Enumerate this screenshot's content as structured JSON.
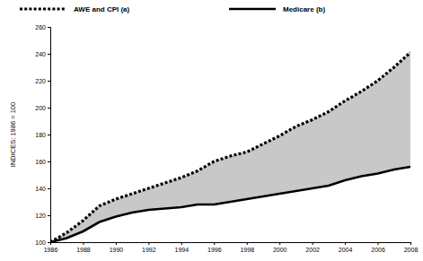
{
  "chart_data": {
    "type": "line",
    "y_label": "INDICES: 1986 = 100",
    "x": [
      1986,
      1987,
      1988,
      1989,
      1990,
      1991,
      1992,
      1993,
      1994,
      1995,
      1996,
      1997,
      1998,
      1999,
      2000,
      2001,
      2002,
      2003,
      2004,
      2005,
      2006,
      2007,
      2008
    ],
    "series": [
      {
        "name": "AWE and CPI (a)",
        "color": "#000000",
        "line_style": "dotted",
        "values": [
          100,
          107,
          116,
          127,
          132,
          136,
          140,
          144,
          148,
          153,
          160,
          164,
          167,
          173,
          179,
          186,
          191,
          197,
          205,
          212,
          220,
          230,
          241
        ]
      },
      {
        "name": "Medicare (b)",
        "color": "#000000",
        "line_style": "solid",
        "values": [
          100,
          103,
          108,
          115,
          119,
          122,
          124,
          125,
          126,
          128,
          128,
          130,
          132,
          134,
          136,
          138,
          140,
          142,
          146,
          149,
          151,
          154,
          156
        ]
      }
    ],
    "xlim": [
      1986,
      2008
    ],
    "xticks": [
      1986,
      1988,
      1990,
      1992,
      1994,
      1996,
      1998,
      2000,
      2002,
      2004,
      2006,
      2008
    ],
    "ylim": [
      100,
      260
    ],
    "yticks": [
      100,
      120,
      140,
      160,
      180,
      200,
      220,
      240,
      260
    ],
    "grid": false,
    "legend": "top"
  }
}
